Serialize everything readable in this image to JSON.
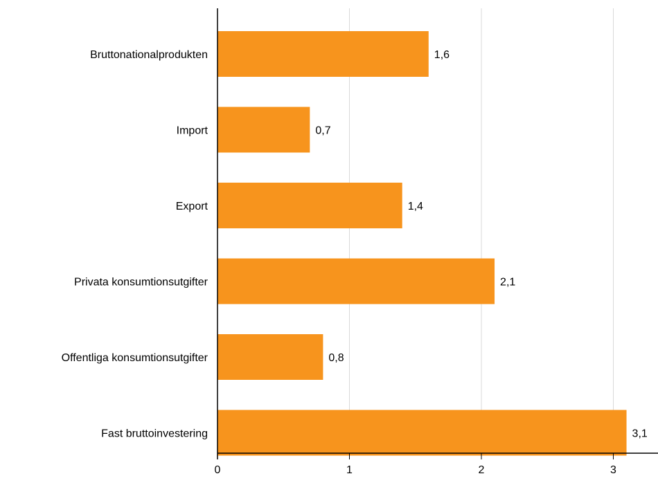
{
  "chart_data": {
    "type": "bar",
    "orientation": "horizontal",
    "categories": [
      "Bruttonationalprodukten",
      "Import",
      "Export",
      "Privata konsumtionsutgifter",
      "Offentliga konsumtionsutgifter",
      "Fast bruttoinvestering"
    ],
    "values": [
      1.6,
      0.7,
      1.4,
      2.1,
      0.8,
      3.1
    ],
    "value_labels": [
      "1,6",
      "0,7",
      "1,4",
      "2,1",
      "0,8",
      "3,1"
    ],
    "x_ticks": [
      "0",
      "1",
      "2",
      "3"
    ],
    "xlim": [
      0,
      3.3
    ],
    "grid": true,
    "bar_color": "#f7941d",
    "grid_color": "#d9d9d9",
    "title": "",
    "xlabel": "",
    "ylabel": ""
  }
}
